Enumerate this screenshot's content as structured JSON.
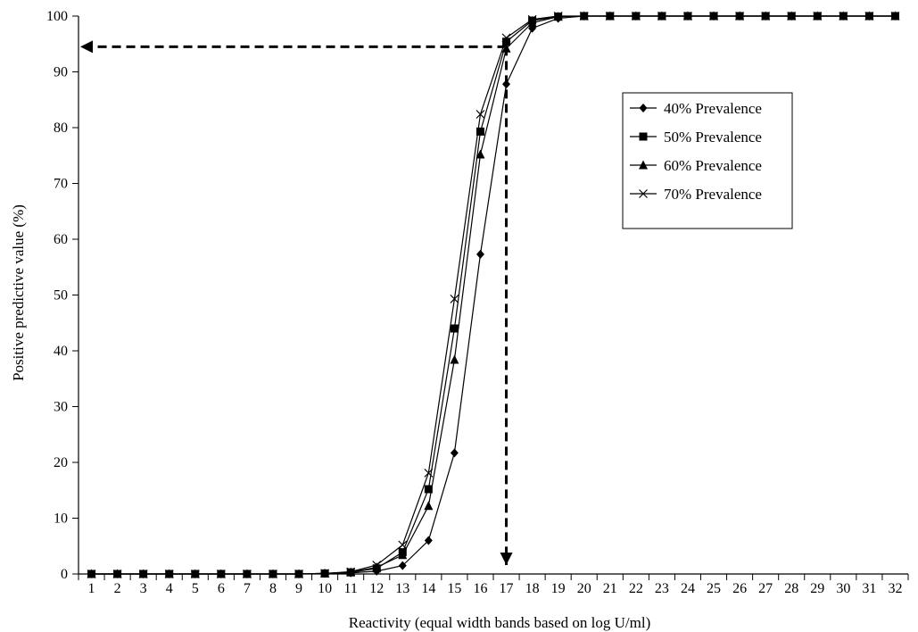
{
  "chart_data": {
    "type": "line",
    "title": "",
    "xlabel": "Reactivity (equal width bands based on log U/ml)",
    "ylabel": "Positive predictive value (%)",
    "x": [
      1,
      2,
      3,
      4,
      5,
      6,
      7,
      8,
      9,
      10,
      11,
      12,
      13,
      14,
      15,
      16,
      17,
      18,
      19,
      20,
      21,
      22,
      23,
      24,
      25,
      26,
      27,
      28,
      29,
      30,
      31,
      32
    ],
    "ylim": [
      0,
      100
    ],
    "yticks": [
      0,
      10,
      20,
      30,
      40,
      50,
      60,
      70,
      80,
      90,
      100
    ],
    "grid": false,
    "legend_position": "right",
    "series": [
      {
        "name": "40% Prevalence",
        "marker": "diamond",
        "values": [
          0,
          0,
          0,
          0,
          0,
          0,
          0,
          0,
          0,
          0.1,
          0.2,
          0.5,
          1.5,
          6,
          21.7,
          57.3,
          87.8,
          97.8,
          99.6,
          100,
          100,
          100,
          100,
          100,
          100,
          100,
          100,
          100,
          100,
          100,
          100,
          100
        ]
      },
      {
        "name": "50% Prevalence",
        "marker": "square",
        "values": [
          0,
          0,
          0,
          0,
          0,
          0,
          0,
          0,
          0,
          0.1,
          0.3,
          1,
          3.9,
          15.2,
          44,
          79.3,
          95.4,
          99.2,
          99.9,
          100,
          100,
          100,
          100,
          100,
          100,
          100,
          100,
          100,
          100,
          100,
          100,
          100
        ]
      },
      {
        "name": "60% Prevalence",
        "marker": "triangle",
        "values": [
          0,
          0,
          0,
          0,
          0,
          0,
          0,
          0,
          0,
          0.1,
          0.3,
          1.2,
          3.4,
          12.2,
          38.4,
          75.2,
          94.2,
          98.8,
          99.9,
          100,
          100,
          100,
          100,
          100,
          100,
          100,
          100,
          100,
          100,
          100,
          100,
          100
        ]
      },
      {
        "name": "70% Prevalence",
        "marker": "x",
        "values": [
          0,
          0,
          0,
          0,
          0,
          0,
          0,
          0,
          0,
          0.1,
          0.4,
          1.6,
          5.2,
          18.1,
          49.3,
          82.4,
          96.1,
          99.4,
          100,
          100,
          100,
          100,
          100,
          100,
          100,
          100,
          100,
          100,
          100,
          100,
          100,
          100
        ]
      }
    ],
    "annotations": [
      {
        "type": "dashed-arrow",
        "from": [
          17,
          94.5
        ],
        "to": [
          1,
          94.5
        ],
        "direction": "left"
      },
      {
        "type": "dashed-arrow",
        "from": [
          17,
          94.5
        ],
        "to": [
          17,
          0
        ],
        "direction": "down"
      }
    ]
  }
}
